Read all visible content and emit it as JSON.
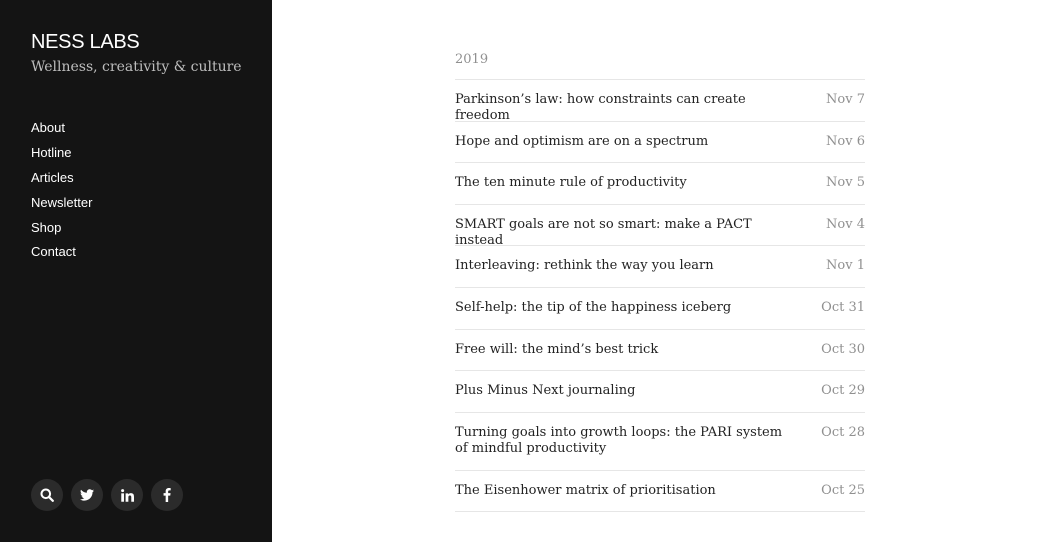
{
  "site": {
    "title": "NESS LABS",
    "tagline": "Wellness, creativity & culture"
  },
  "nav": {
    "items": [
      {
        "label": "About"
      },
      {
        "label": "Hotline"
      },
      {
        "label": "Articles"
      },
      {
        "label": "Newsletter"
      },
      {
        "label": "Shop"
      },
      {
        "label": "Contact"
      }
    ]
  },
  "social": {
    "icons": [
      "search-icon",
      "twitter-icon",
      "linkedin-icon",
      "facebook-icon"
    ]
  },
  "archive": {
    "year": "2019",
    "posts": [
      {
        "title": "Parkinson’s law: how constraints can create freedom",
        "date": "Nov 7"
      },
      {
        "title": "Hope and optimism are on a spectrum",
        "date": "Nov 6"
      },
      {
        "title": "The ten minute rule of productivity",
        "date": "Nov 5"
      },
      {
        "title": "SMART goals are not so smart: make a PACT instead",
        "date": "Nov 4"
      },
      {
        "title": "Interleaving: rethink the way you learn",
        "date": "Nov 1"
      },
      {
        "title": "Self-help: the tip of the happiness iceberg",
        "date": "Oct 31"
      },
      {
        "title": "Free will: the mind’s best trick",
        "date": "Oct 30"
      },
      {
        "title": "Plus Minus Next journaling",
        "date": "Oct 29"
      },
      {
        "title": "Turning goals into growth loops: the PARI system of mindful productivity",
        "date": "Oct 28"
      },
      {
        "title": "The Eisenhower matrix of prioritisation",
        "date": "Oct 25"
      }
    ]
  },
  "colors": {
    "sidebar_bg": "#141414",
    "icon_bg": "#2b2b2b",
    "date_text": "#909090"
  }
}
